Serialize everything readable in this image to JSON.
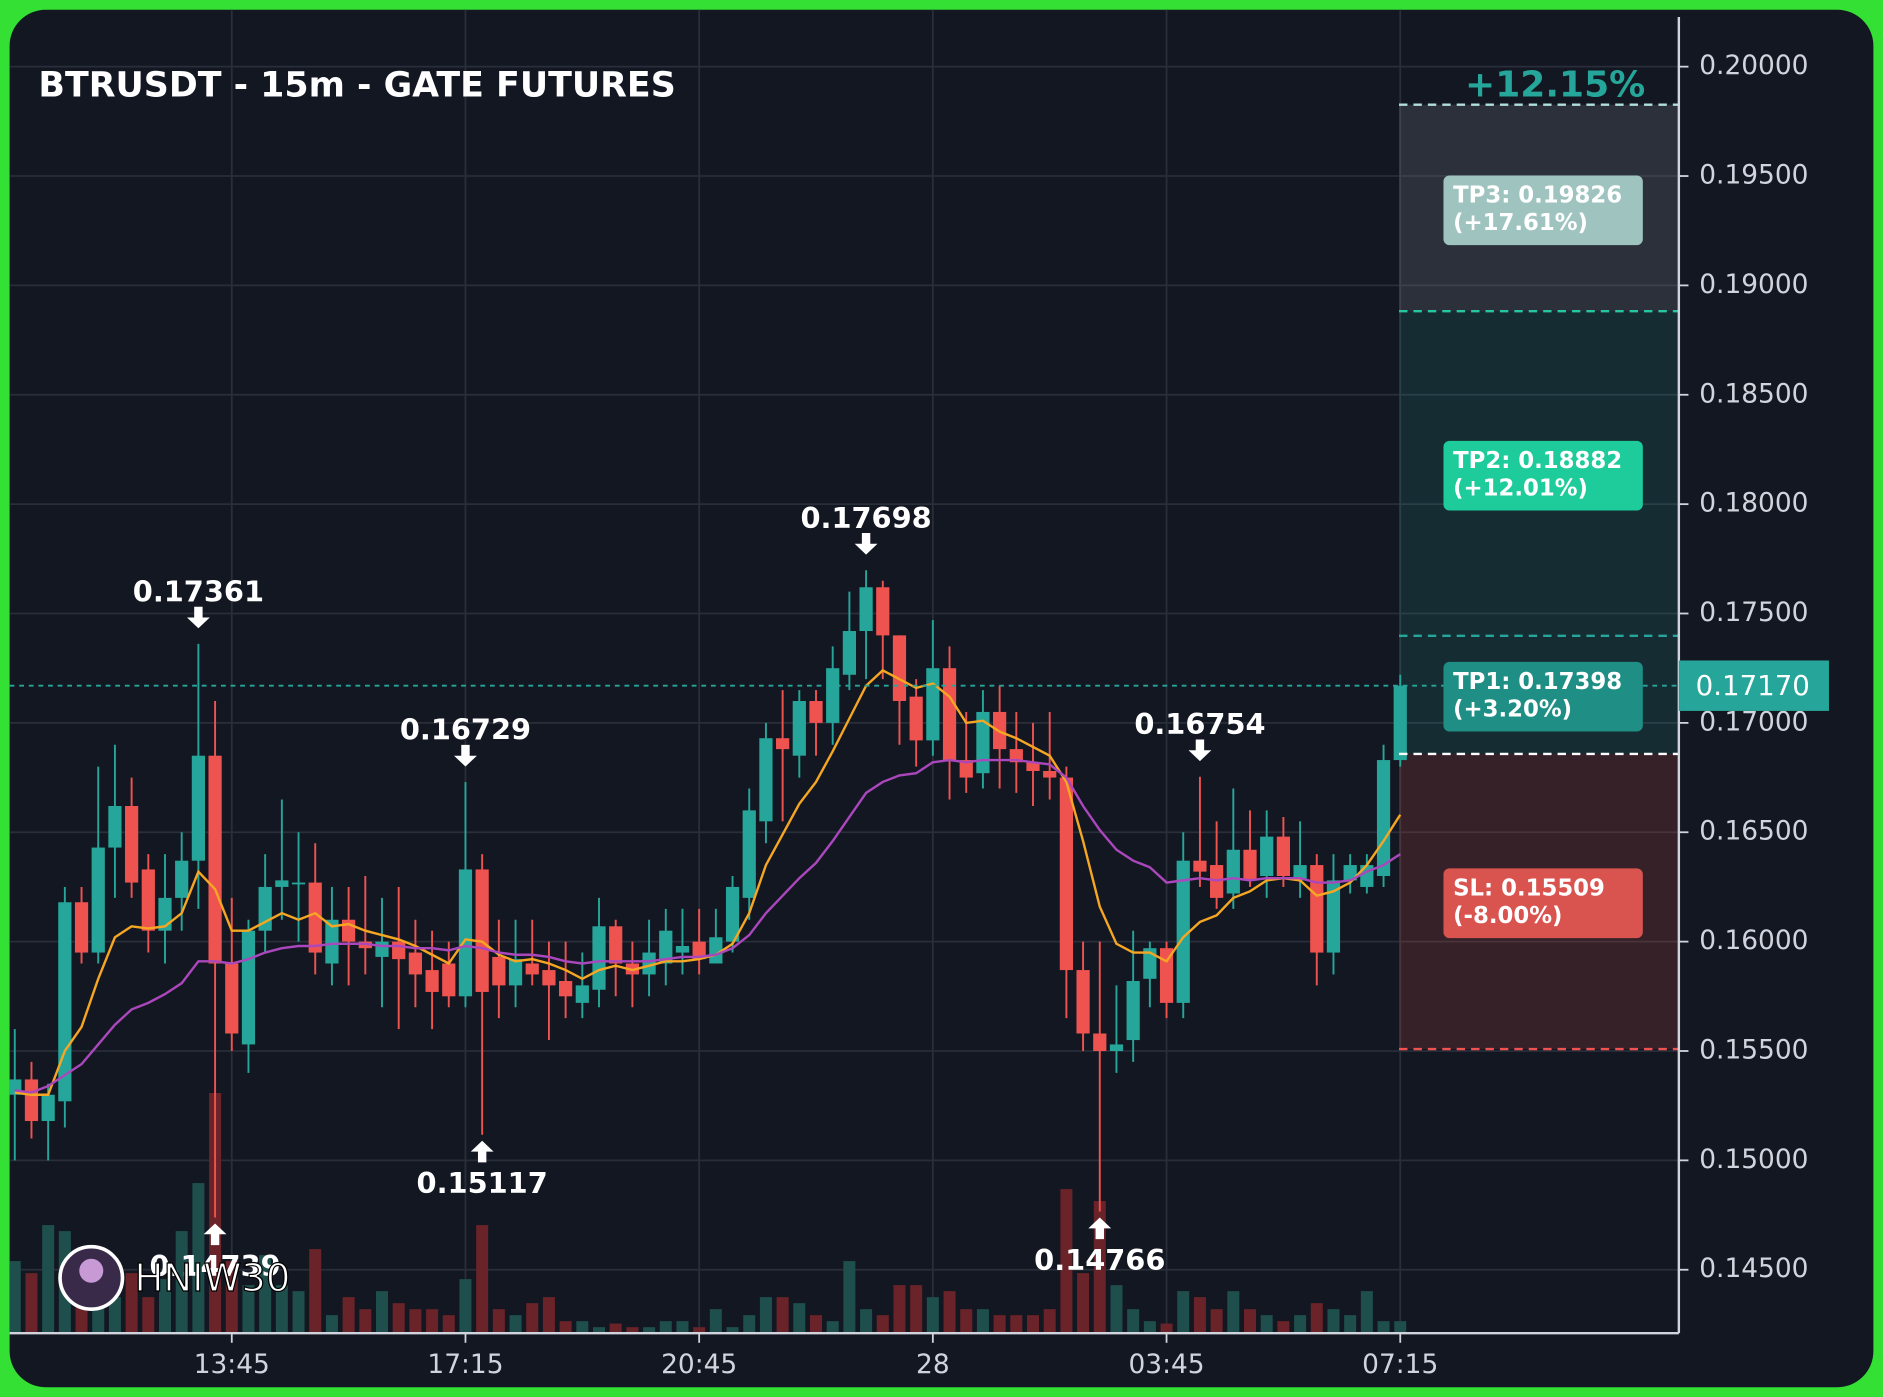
{
  "chart_data": {
    "type": "candlestick",
    "title": "BTRUSDT - 15m - GATE FUTURES",
    "categories": [
      null,
      null,
      null,
      null,
      null,
      null,
      null,
      null,
      null,
      null,
      null,
      null,
      null,
      "13:45",
      null,
      null,
      null,
      null,
      null,
      null,
      null,
      null,
      null,
      null,
      null,
      null,
      null,
      "17:15",
      null,
      null,
      null,
      null,
      null,
      null,
      null,
      null,
      null,
      null,
      null,
      null,
      null,
      "20:45",
      null,
      null,
      null,
      null,
      null,
      null,
      null,
      null,
      null,
      null,
      null,
      null,
      null,
      "28",
      null,
      null,
      null,
      null,
      null,
      null,
      null,
      null,
      null,
      null,
      null,
      null,
      null,
      "03:45",
      null,
      null,
      null,
      null,
      null,
      null,
      null,
      null,
      null,
      null,
      null,
      null,
      null,
      "07:15"
    ],
    "open": [
      0.153,
      0.1537,
      0.1518,
      0.1527,
      0.1618,
      0.1595,
      0.1643,
      0.1662,
      0.1633,
      0.1605,
      0.162,
      0.1637,
      0.1685,
      0.159,
      0.1553,
      0.1605,
      0.1625,
      0.1627,
      0.1627,
      0.159,
      0.161,
      0.16,
      0.1593,
      0.16,
      0.1595,
      0.1587,
      0.159,
      0.1575,
      0.1633,
      0.1593,
      0.158,
      0.159,
      0.1587,
      0.1582,
      0.1572,
      0.1578,
      0.1607,
      0.159,
      0.1585,
      0.159,
      0.1595,
      0.16,
      0.159,
      0.16,
      0.162,
      0.1655,
      0.1693,
      0.1685,
      0.171,
      0.17,
      0.1722,
      0.1742,
      0.1762,
      0.174,
      0.1712,
      0.1692,
      0.1725,
      0.1683,
      0.1677,
      0.1705,
      0.1688,
      0.1682,
      0.1678,
      0.1675,
      0.1587,
      0.1558,
      0.155,
      0.1555,
      0.1583,
      0.1597,
      0.1572,
      0.1637,
      0.1635,
      0.1622,
      0.1642,
      0.163,
      0.1648,
      0.1628,
      0.1635,
      0.1595,
      0.1628,
      0.1625,
      0.163,
      0.1683
    ],
    "high": [
      0.156,
      0.1545,
      0.1535,
      0.1625,
      0.1625,
      0.168,
      0.169,
      0.1675,
      0.164,
      0.164,
      0.165,
      0.17361,
      0.171,
      0.162,
      0.161,
      0.164,
      0.1665,
      0.165,
      0.1645,
      0.1625,
      0.1625,
      0.163,
      0.162,
      0.1625,
      0.161,
      0.1605,
      0.16,
      0.16729,
      0.164,
      0.161,
      0.161,
      0.161,
      0.16,
      0.16,
      0.1595,
      0.162,
      0.161,
      0.16,
      0.161,
      0.1615,
      0.1615,
      0.1615,
      0.1615,
      0.163,
      0.167,
      0.17,
      0.1715,
      0.1715,
      0.1715,
      0.1735,
      0.176,
      0.17698,
      0.1765,
      0.174,
      0.172,
      0.1747,
      0.1735,
      0.1705,
      0.1715,
      0.1717,
      0.1705,
      0.17,
      0.1705,
      0.168,
      0.16,
      0.16,
      0.158,
      0.1605,
      0.16,
      0.16,
      0.165,
      0.16754,
      0.1655,
      0.167,
      0.166,
      0.166,
      0.1657,
      0.1655,
      0.164,
      0.164,
      0.164,
      0.164,
      0.169,
      0.1722
    ],
    "low": [
      0.15,
      0.151,
      0.15,
      0.1515,
      0.159,
      0.159,
      0.162,
      0.162,
      0.1595,
      0.159,
      0.1605,
      0.1615,
      0.14739,
      0.155,
      0.154,
      0.1595,
      0.161,
      0.16,
      0.1585,
      0.158,
      0.158,
      0.1585,
      0.157,
      0.156,
      0.157,
      0.156,
      0.157,
      0.157,
      0.15117,
      0.1565,
      0.157,
      0.158,
      0.1555,
      0.1565,
      0.1565,
      0.157,
      0.1575,
      0.157,
      0.1575,
      0.158,
      0.1585,
      0.1585,
      0.159,
      0.1595,
      0.161,
      0.1645,
      0.1655,
      0.1675,
      0.1685,
      0.169,
      0.1715,
      0.172,
      0.172,
      0.169,
      0.168,
      0.1685,
      0.1665,
      0.1668,
      0.167,
      0.167,
      0.1668,
      0.1662,
      0.1665,
      0.1565,
      0.155,
      0.14766,
      0.154,
      0.1545,
      0.157,
      0.1565,
      0.1565,
      0.1625,
      0.1615,
      0.1615,
      0.1625,
      0.162,
      0.1625,
      0.162,
      0.158,
      0.1585,
      0.1622,
      0.1622,
      0.1625,
      0.168
    ],
    "close": [
      0.1537,
      0.1518,
      0.153,
      0.1618,
      0.1595,
      0.1643,
      0.1662,
      0.1627,
      0.1605,
      0.162,
      0.1637,
      0.1685,
      0.159,
      0.1558,
      0.1605,
      0.1625,
      0.1628,
      0.1627,
      0.1595,
      0.161,
      0.16,
      0.1597,
      0.16,
      0.1592,
      0.1585,
      0.1577,
      0.1575,
      0.1633,
      0.1577,
      0.158,
      0.1592,
      0.1585,
      0.158,
      0.1575,
      0.158,
      0.1607,
      0.159,
      0.1585,
      0.1595,
      0.1605,
      0.1598,
      0.1592,
      0.1602,
      0.1625,
      0.166,
      0.1693,
      0.1688,
      0.171,
      0.17,
      0.1725,
      0.1742,
      0.1762,
      0.174,
      0.171,
      0.1692,
      0.1725,
      0.1683,
      0.1675,
      0.1705,
      0.1688,
      0.1682,
      0.1678,
      0.1675,
      0.1587,
      0.1558,
      0.155,
      0.1553,
      0.1582,
      0.1597,
      0.1572,
      0.1637,
      0.1632,
      0.162,
      0.1642,
      0.1628,
      0.1648,
      0.163,
      0.1635,
      0.1595,
      0.1628,
      0.1635,
      0.1635,
      0.1683,
      0.1717
    ],
    "volume": [
      60,
      50,
      90,
      85,
      40,
      45,
      30,
      50,
      30,
      45,
      85,
      125,
      200,
      60,
      40,
      65,
      40,
      35,
      70,
      15,
      30,
      20,
      35,
      25,
      20,
      20,
      15,
      45,
      90,
      20,
      15,
      25,
      30,
      10,
      10,
      5,
      8,
      5,
      5,
      10,
      10,
      5,
      20,
      5,
      15,
      30,
      30,
      25,
      15,
      10,
      60,
      20,
      15,
      40,
      40,
      30,
      35,
      20,
      20,
      15,
      15,
      15,
      20,
      120,
      50,
      110,
      40,
      20,
      10,
      8,
      35,
      30,
      20,
      35,
      20,
      15,
      10,
      15,
      25,
      20,
      15,
      35,
      10,
      10
    ],
    "up_color": "#26a69a",
    "down_color": "#ef5350",
    "up_volume_color": "#1e4f4c",
    "down_volume_color": "#6a2328",
    "series": [
      {
        "color": "#f5a623",
        "values": [
          0.1531,
          0.153,
          0.153,
          0.155,
          0.1561,
          0.1583,
          0.1602,
          0.1607,
          0.1606,
          0.1607,
          0.1613,
          0.1632,
          0.1624,
          0.1605,
          0.1605,
          0.1609,
          0.1613,
          0.161,
          0.1613,
          0.1607,
          0.1608,
          0.1605,
          0.1603,
          0.1601,
          0.1598,
          0.1594,
          0.159,
          0.1601,
          0.16,
          0.1594,
          0.1591,
          0.1592,
          0.159,
          0.1587,
          0.1583,
          0.1587,
          0.1589,
          0.1587,
          0.1589,
          0.1591,
          0.1591,
          0.1592,
          0.1594,
          0.1599,
          0.1613,
          0.1635,
          0.1649,
          0.1663,
          0.1673,
          0.1687,
          0.1702,
          0.1717,
          0.1724,
          0.172,
          0.1716,
          0.1718,
          0.1712,
          0.17,
          0.1701,
          0.1696,
          0.1693,
          0.1689,
          0.1685,
          0.1673,
          0.1646,
          0.1616,
          0.1599,
          0.1595,
          0.1595,
          0.1591,
          0.1602,
          0.1609,
          0.1612,
          0.162,
          0.1623,
          0.1628,
          0.1629,
          0.1628,
          0.1621,
          0.1623,
          0.1627,
          0.1635,
          0.1646,
          0.1658
        ]
      },
      {
        "color": "#ab47bc",
        "values": [
          0.1532,
          0.1531,
          0.1534,
          0.1539,
          0.1544,
          0.1553,
          0.1562,
          0.1569,
          0.1572,
          0.1576,
          0.1581,
          0.1591,
          0.1591,
          0.159,
          0.1592,
          0.1595,
          0.1597,
          0.1598,
          0.1598,
          0.1599,
          0.1599,
          0.1599,
          0.1598,
          0.1598,
          0.1597,
          0.1597,
          0.1596,
          0.1598,
          0.1597,
          0.1595,
          0.1594,
          0.1594,
          0.1593,
          0.1591,
          0.159,
          0.1591,
          0.1591,
          0.1591,
          0.1591,
          0.1592,
          0.1593,
          0.1593,
          0.1594,
          0.1597,
          0.1603,
          0.1613,
          0.1621,
          0.1629,
          0.1636,
          0.1646,
          0.1657,
          0.1668,
          0.1673,
          0.1676,
          0.1677,
          0.1682,
          0.1683,
          0.1682,
          0.1683,
          0.1683,
          0.1683,
          0.1682,
          0.1681,
          0.1675,
          0.1662,
          0.1651,
          0.1642,
          0.1637,
          0.1634,
          0.1627,
          0.1628,
          0.1629,
          0.1628,
          0.1629,
          0.1628,
          0.1629,
          0.1629,
          0.1629,
          0.1627,
          0.1627,
          0.1628,
          0.1632,
          0.1635,
          0.164
        ]
      }
    ],
    "ylim": [
      0.1421,
      0.2026
    ],
    "yticks": [
      {
        "value": 0.145,
        "label": "0.14500"
      },
      {
        "value": 0.15,
        "label": "0.15000"
      },
      {
        "value": 0.155,
        "label": "0.15500"
      },
      {
        "value": 0.16,
        "label": "0.16000"
      },
      {
        "value": 0.165,
        "label": "0.16500"
      },
      {
        "value": 0.17,
        "label": "0.17000"
      },
      {
        "value": 0.175,
        "label": "0.17500"
      },
      {
        "value": 0.18,
        "label": "0.18000"
      },
      {
        "value": 0.185,
        "label": "0.18500"
      },
      {
        "value": 0.19,
        "label": "0.19000"
      },
      {
        "value": 0.195,
        "label": "0.19500"
      },
      {
        "value": 0.2,
        "label": "0.20000"
      }
    ],
    "grid": true,
    "current_price": {
      "value": 0.1717,
      "label": "0.17170"
    },
    "peak_labels": [
      0.17361,
      0.16729,
      0.17698,
      0.16754
    ],
    "trough_labels": [
      0.14739,
      0.15117,
      0.14766
    ],
    "entry": 0.16858,
    "gain_label": "+12.15%",
    "targets": [
      {
        "text": "TP3: 0.19826",
        "sub": "(+17.61%)",
        "price": 0.19826,
        "color": "#9fc4c0",
        "line_color": "#b2dfdb"
      },
      {
        "text": "TP2: 0.18882",
        "sub": "(+12.01%)",
        "price": 0.18882,
        "color": "#1ecb9b",
        "line_color": "#26c6a0"
      },
      {
        "text": "TP1: 0.17398",
        "sub": "(+3.20%)",
        "price": 0.17398,
        "color": "#1f8f86",
        "line_color": "#26a69a"
      },
      {
        "text": "SL: 0.15509",
        "sub": "(-8.00%)",
        "price": 0.15509,
        "color": "#d9534f",
        "line_color": "#ef5350"
      }
    ],
    "watermark": "HNIW30"
  }
}
